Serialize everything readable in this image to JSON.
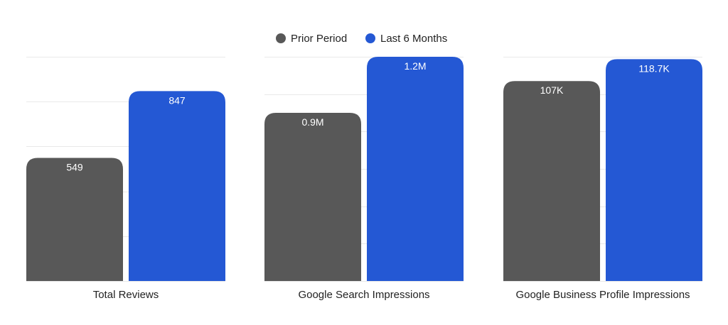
{
  "chart_data": {
    "type": "bar",
    "legend": {
      "position": "top-center",
      "items": [
        {
          "label": "Prior Period",
          "color": "#585858"
        },
        {
          "label": "Last 6 Months",
          "color": "#2458d4"
        }
      ]
    },
    "grid": true,
    "panels": [
      {
        "category": "Total Reviews",
        "ylim": [
          0,
          1000
        ],
        "gridlines": [
          0,
          200,
          400,
          600,
          800,
          1000
        ],
        "bars": [
          {
            "series": "Prior Period",
            "value": 549,
            "label": "549"
          },
          {
            "series": "Last 6 Months",
            "value": 847,
            "label": "847"
          }
        ]
      },
      {
        "category": "Google Search Impressions",
        "ylim": [
          0,
          1200000
        ],
        "gridlines": [
          0,
          200000,
          400000,
          600000,
          800000,
          1000000,
          1200000
        ],
        "bars": [
          {
            "series": "Prior Period",
            "value": 900000,
            "label": "0.9M"
          },
          {
            "series": "Last 6 Months",
            "value": 1200000,
            "label": "1.2M"
          }
        ]
      },
      {
        "category": "Google Business Profile Impressions",
        "ylim": [
          0,
          120000
        ],
        "gridlines": [
          0,
          20000,
          40000,
          60000,
          80000,
          100000,
          120000
        ],
        "bars": [
          {
            "series": "Prior Period",
            "value": 107000,
            "label": "107K"
          },
          {
            "series": "Last 6 Months",
            "value": 118700,
            "label": "118.7K"
          }
        ]
      }
    ]
  }
}
